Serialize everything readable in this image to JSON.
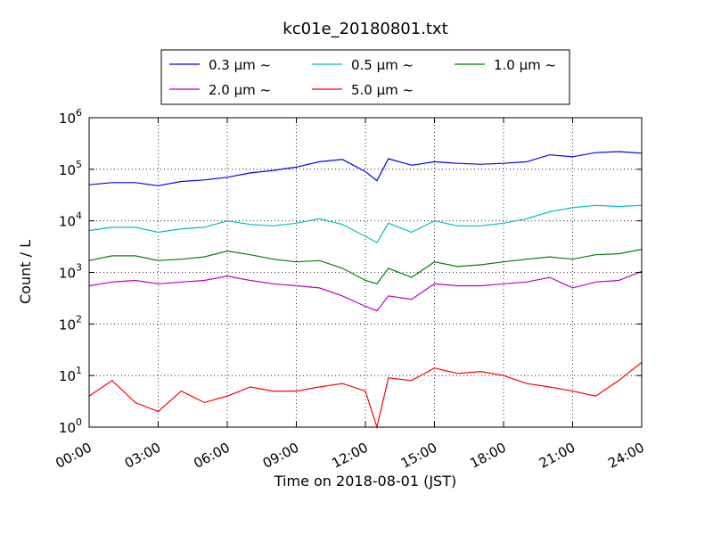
{
  "chart_data": {
    "type": "line",
    "title": "kc01e_20180801.txt",
    "xlabel": "Time on 2018-08-01 (JST)",
    "ylabel": "Count / L",
    "y_scale": "log",
    "ylim": [
      1,
      1000000
    ],
    "xlim": [
      "00:00",
      "24:00"
    ],
    "x_ticks": [
      "00:00",
      "03:00",
      "06:00",
      "09:00",
      "12:00",
      "15:00",
      "18:00",
      "21:00",
      "24:00"
    ],
    "y_ticks": [
      {
        "value": 1,
        "base": "10",
        "exp": "0"
      },
      {
        "value": 10,
        "base": "10",
        "exp": "1"
      },
      {
        "value": 100,
        "base": "10",
        "exp": "2"
      },
      {
        "value": 1000,
        "base": "10",
        "exp": "3"
      },
      {
        "value": 10000,
        "base": "10",
        "exp": "4"
      },
      {
        "value": 100000,
        "base": "10",
        "exp": "5"
      },
      {
        "value": 1000000,
        "base": "10",
        "exp": "6"
      }
    ],
    "grid": true,
    "legend_position": "top-center",
    "x_hours": [
      0,
      1,
      2,
      3,
      4,
      5,
      6,
      7,
      8,
      9,
      10,
      11,
      12,
      12.5,
      13,
      14,
      15,
      16,
      17,
      18,
      19,
      20,
      21,
      22,
      23,
      24
    ],
    "series": [
      {
        "name": "0.3 µm ~",
        "color": "#0000ff",
        "values": [
          50000,
          55000,
          55000,
          48000,
          58000,
          62000,
          70000,
          85000,
          95000,
          110000,
          140000,
          155000,
          90000,
          60000,
          160000,
          120000,
          140000,
          130000,
          125000,
          130000,
          140000,
          190000,
          175000,
          210000,
          220000,
          205000
        ]
      },
      {
        "name": "0.5 µm ~",
        "color": "#00bfbf",
        "values": [
          6500,
          7500,
          7500,
          6000,
          7000,
          7500,
          10000,
          8500,
          8000,
          9000,
          11000,
          8500,
          5000,
          3800,
          9000,
          6000,
          10000,
          8000,
          8000,
          9000,
          11000,
          15000,
          18000,
          20000,
          19000,
          20000
        ]
      },
      {
        "name": "1.0 µm ~",
        "color": "#008000",
        "values": [
          1700,
          2100,
          2100,
          1700,
          1800,
          2000,
          2600,
          2200,
          1800,
          1600,
          1700,
          1200,
          700,
          600,
          1200,
          800,
          1600,
          1300,
          1400,
          1600,
          1800,
          2000,
          1800,
          2200,
          2300,
          2800
        ]
      },
      {
        "name": "2.0 µm ~",
        "color": "#bf00bf",
        "values": [
          550,
          650,
          700,
          600,
          650,
          700,
          850,
          700,
          600,
          550,
          500,
          350,
          220,
          180,
          350,
          300,
          600,
          550,
          550,
          600,
          650,
          800,
          500,
          650,
          700,
          1050
        ]
      },
      {
        "name": "5.0 µm ~",
        "color": "#ff0000",
        "values": [
          4,
          8,
          3,
          2,
          5,
          3,
          4,
          6,
          5,
          5,
          6,
          7,
          5,
          1,
          9,
          8,
          14,
          11,
          12,
          10,
          7,
          6,
          5,
          4,
          8,
          18
        ]
      }
    ]
  }
}
